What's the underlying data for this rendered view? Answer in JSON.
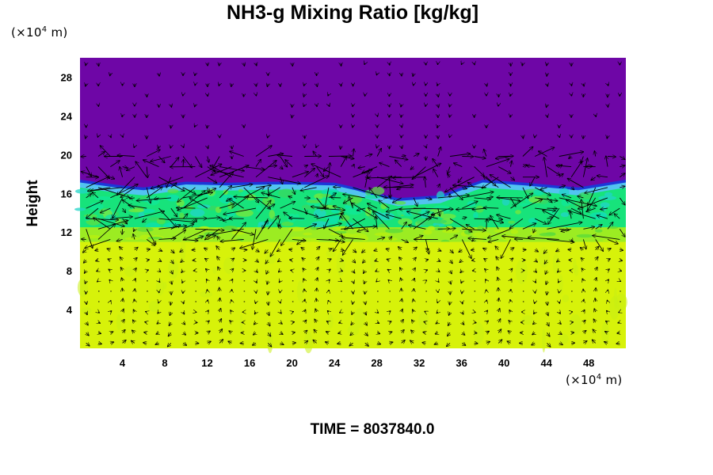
{
  "figure": {
    "title": "NH3-g Mixing Ratio [kg/kg]",
    "y_unit_prefix": "(×10",
    "y_unit_exp": "4",
    "y_unit_suffix": " m)",
    "x_unit_prefix": "(×10",
    "x_unit_exp": "4",
    "x_unit_suffix": " m)",
    "ylabel": "Height",
    "time_label": "TIME = 8037840.0"
  },
  "chart_data": {
    "type": "heatmap",
    "title": "NH3-g Mixing Ratio [kg/kg]",
    "xlabel": "",
    "ylabel": "Height",
    "x_unit": "×10^4 m",
    "y_unit": "×10^4 m",
    "xlim": [
      0,
      51.5
    ],
    "ylim": [
      0,
      30
    ],
    "x_ticks": [
      4,
      8,
      12,
      16,
      20,
      24,
      28,
      32,
      36,
      40,
      44,
      48
    ],
    "y_ticks": [
      4,
      8,
      12,
      16,
      20,
      24,
      28
    ],
    "grid": false,
    "colorbar": false,
    "layers": [
      {
        "name": "lower layer",
        "y_range": [
          0,
          11
        ],
        "color": "#d7f20a"
      },
      {
        "name": "transition band",
        "y_range": [
          11,
          12.5
        ],
        "color": "#9cec22"
      },
      {
        "name": "mixed layer",
        "y_range": [
          12.5,
          17.5
        ],
        "color": "#17e37b"
      },
      {
        "name": "upper layer",
        "y_range": [
          17.5,
          30
        ],
        "color": "#6e06a6"
      }
    ],
    "interface_height": [
      {
        "x": 0,
        "y": 17.0
      },
      {
        "x": 4,
        "y": 16.4
      },
      {
        "x": 6,
        "y": 16.2
      },
      {
        "x": 10,
        "y": 16.8
      },
      {
        "x": 14,
        "y": 16.7
      },
      {
        "x": 18,
        "y": 16.8
      },
      {
        "x": 20,
        "y": 16.8
      },
      {
        "x": 24,
        "y": 16.7
      },
      {
        "x": 26,
        "y": 16.2
      },
      {
        "x": 28,
        "y": 15.6
      },
      {
        "x": 30,
        "y": 15.1
      },
      {
        "x": 34,
        "y": 15.4
      },
      {
        "x": 36,
        "y": 16.2
      },
      {
        "x": 38,
        "y": 17.0
      },
      {
        "x": 42,
        "y": 16.7
      },
      {
        "x": 45,
        "y": 16.4
      },
      {
        "x": 47,
        "y": 16.2
      },
      {
        "x": 51.5,
        "y": 17.0
      }
    ],
    "time": 8037840.0,
    "vector_field": "wind arrows overlaid; longest arrows within mixed layer (y≈11–20), counter-rotating cells below y≈11"
  }
}
